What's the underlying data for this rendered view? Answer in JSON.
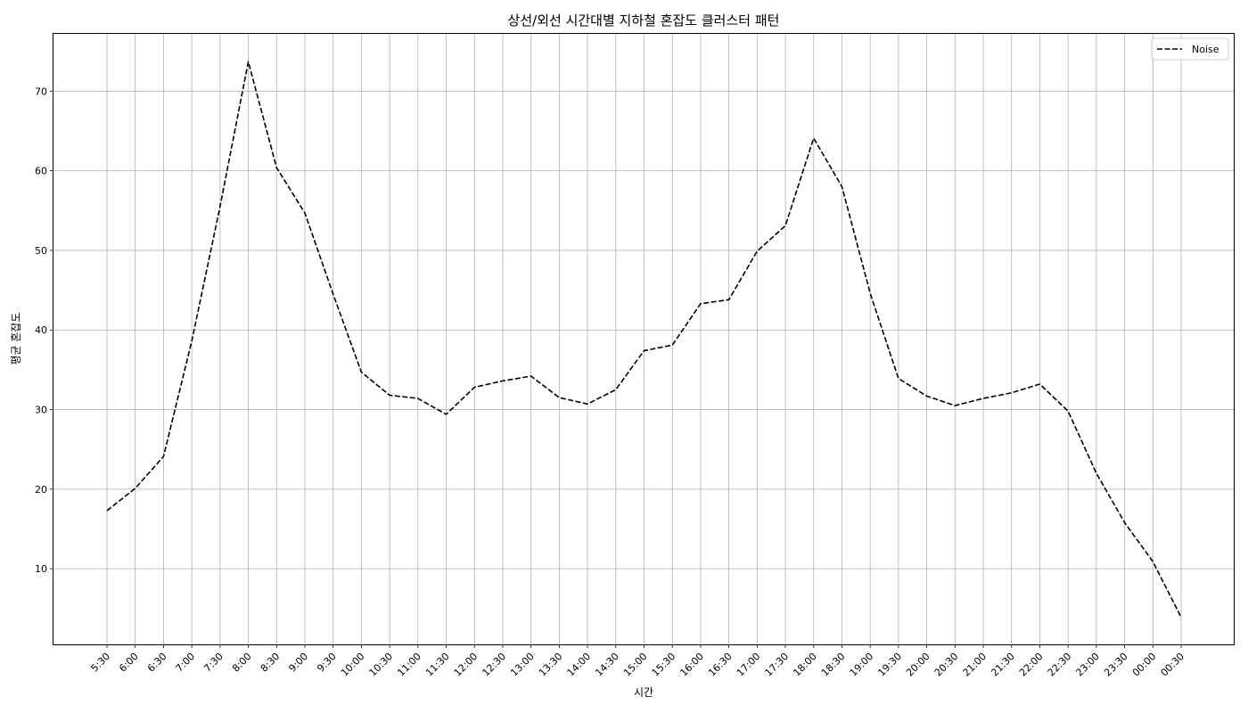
{
  "chart_data": {
    "type": "line",
    "title": "상선/외선 시간대별 지하철 혼잡도 클러스터 패턴",
    "xlabel": "시간",
    "ylabel": "평균 혼잡도",
    "categories": [
      "5:30",
      "6:00",
      "6:30",
      "7:00",
      "7:30",
      "8:00",
      "8:30",
      "9:00",
      "9:30",
      "10:00",
      "10:30",
      "11:00",
      "11:30",
      "12:00",
      "12:30",
      "13:00",
      "13:30",
      "14:00",
      "14:30",
      "15:00",
      "15:30",
      "16:00",
      "16:30",
      "17:00",
      "17:30",
      "18:00",
      "18:30",
      "19:00",
      "19:30",
      "20:00",
      "20:30",
      "21:00",
      "21:30",
      "22:00",
      "22:30",
      "23:00",
      "23:30",
      "00:00",
      "00:30"
    ],
    "series": [
      {
        "name": "Noise",
        "color": "#000000",
        "dashed": true,
        "values": [
          17.3,
          20.1,
          24.1,
          38.6,
          55.5,
          73.7,
          60.4,
          54.7,
          44.5,
          34.7,
          31.8,
          31.4,
          29.4,
          32.8,
          33.6,
          34.2,
          31.5,
          30.7,
          32.5,
          37.4,
          38.1,
          43.3,
          43.8,
          49.9,
          53.1,
          64.1,
          58.0,
          44.6,
          33.9,
          31.7,
          30.5,
          31.4,
          32.1,
          33.2,
          29.8,
          22.0,
          15.8,
          10.9,
          3.9
        ]
      }
    ],
    "ylim": [
      0.5,
      77.2
    ],
    "yticks": [
      10,
      20,
      30,
      40,
      50,
      60,
      70
    ],
    "grid": true,
    "legend_position": "top-right",
    "x_tick_rotation": 45
  }
}
